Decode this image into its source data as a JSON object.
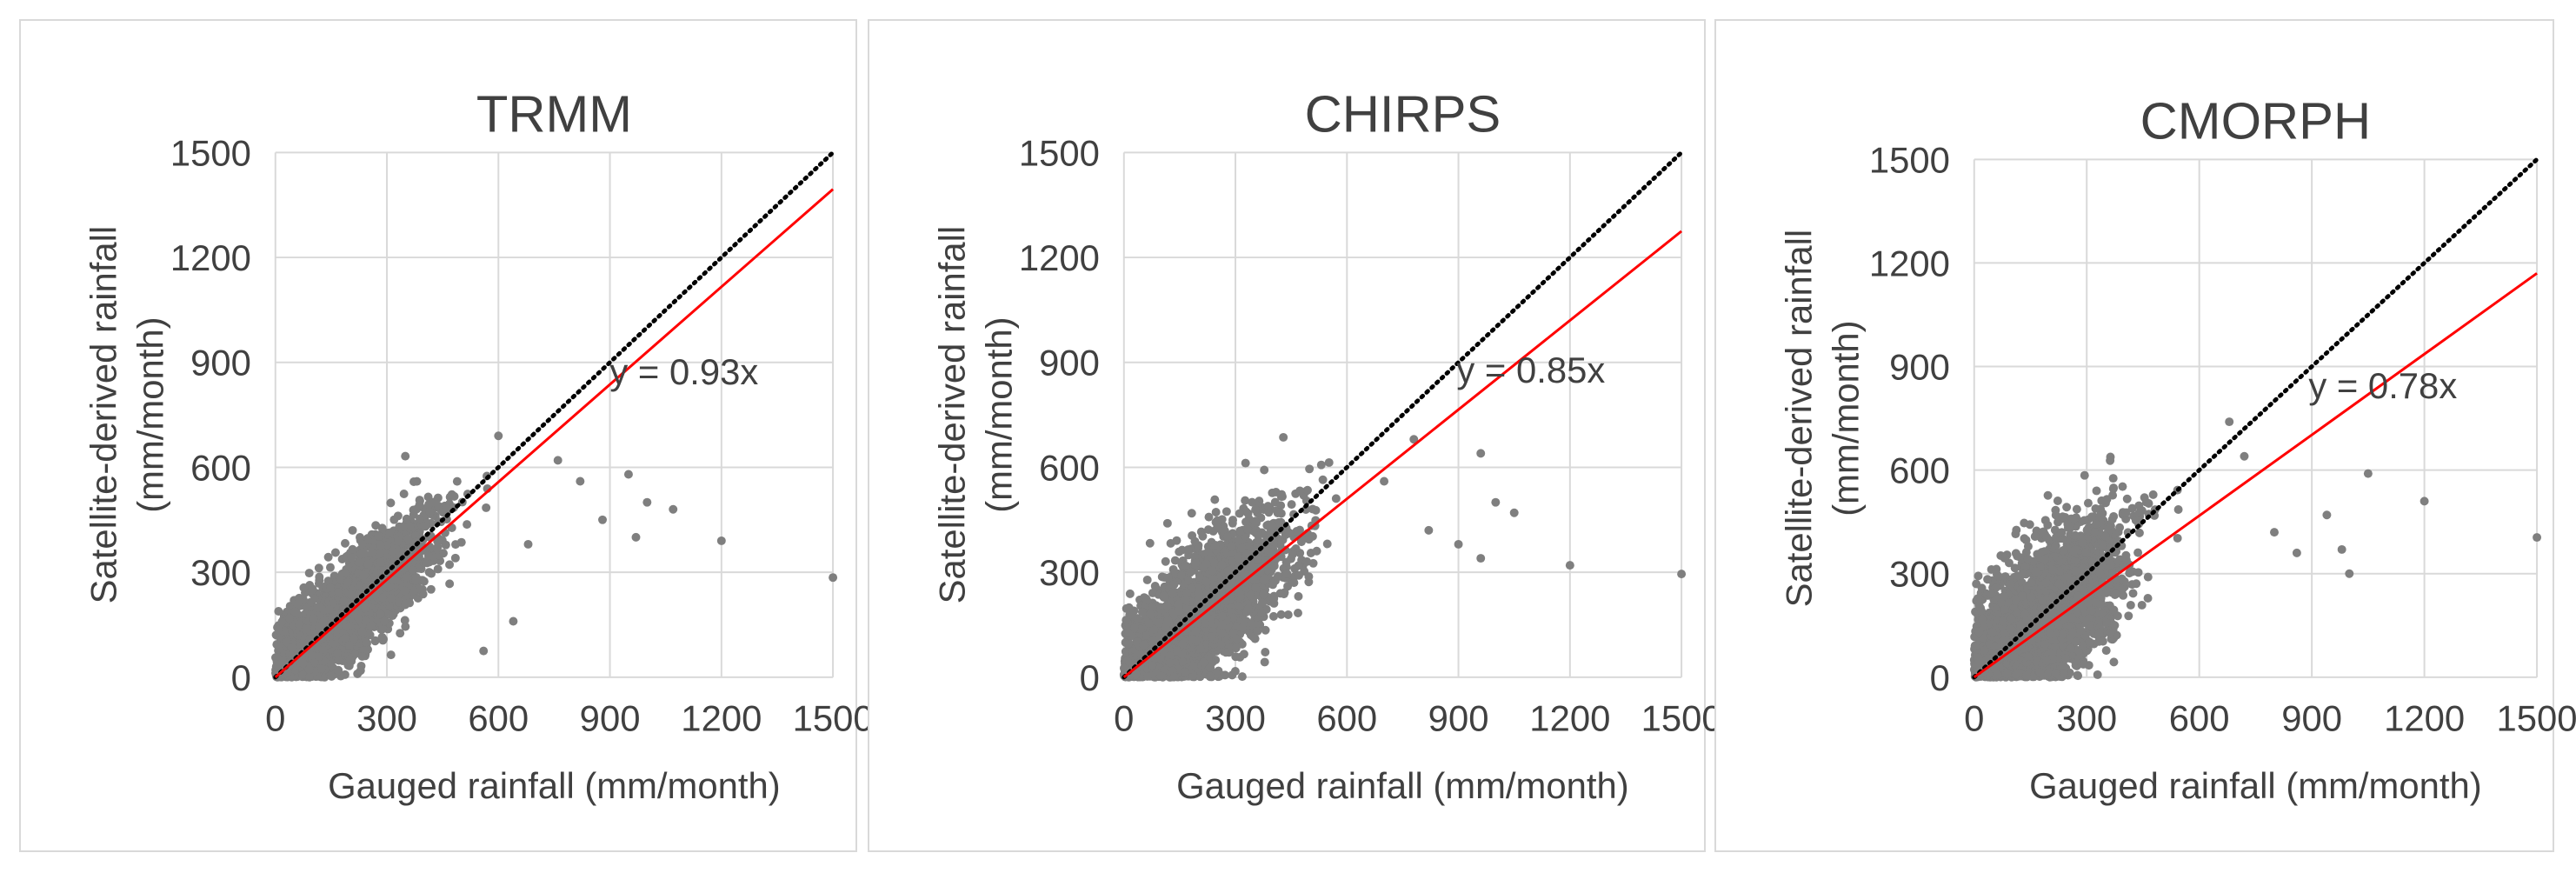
{
  "chart_data": [
    {
      "type": "scatter",
      "title": "TRMM",
      "xlabel": "Gauged rainfall (mm/month)",
      "ylabel_line1": "Satellite-derived rainfall",
      "ylabel_line2": "(mm/month)",
      "xlim": [
        0,
        1500
      ],
      "ylim": [
        0,
        1500
      ],
      "x_ticks": [
        "0",
        "300",
        "600",
        "900",
        "1200",
        "1500"
      ],
      "y_ticks": [
        "0",
        "300",
        "600",
        "900",
        "1200",
        "1500"
      ],
      "grid": true,
      "point_color": "#7f7f7f",
      "fit_color": "#ff0000",
      "one_to_one_color": "#000000",
      "fit_slope": 0.93,
      "equation": "y = 0.93x",
      "cloud": {
        "x_mean": 190,
        "x_sd": 120,
        "y_slope": 0.95,
        "y_sd": 70,
        "count": 2600
      },
      "outliers": [
        [
          950,
          580
        ],
        [
          1000,
          500
        ],
        [
          1070,
          480
        ],
        [
          970,
          400
        ],
        [
          1200,
          390
        ],
        [
          1500,
          285
        ],
        [
          640,
          160
        ],
        [
          600,
          690
        ],
        [
          760,
          620
        ],
        [
          820,
          560
        ],
        [
          880,
          450
        ],
        [
          680,
          380
        ],
        [
          560,
          75
        ]
      ]
    },
    {
      "type": "scatter",
      "title": "CHIRPS",
      "xlabel": "Gauged rainfall (mm/month)",
      "ylabel_line1": "Satellite-derived rainfall",
      "ylabel_line2": "(mm/month)",
      "xlim": [
        0,
        1500
      ],
      "ylim": [
        0,
        1500
      ],
      "x_ticks": [
        "0",
        "300",
        "600",
        "900",
        "1200",
        "1500"
      ],
      "y_ticks": [
        "0",
        "300",
        "600",
        "900",
        "1200",
        "1500"
      ],
      "grid": true,
      "point_color": "#7f7f7f",
      "fit_color": "#ff0000",
      "one_to_one_color": "#000000",
      "fit_slope": 0.85,
      "equation": "y = 0.85x",
      "cloud": {
        "x_mean": 200,
        "x_sd": 125,
        "y_slope": 0.85,
        "y_sd": 95,
        "count": 2600
      },
      "outliers": [
        [
          960,
          640
        ],
        [
          780,
          680
        ],
        [
          1050,
          470
        ],
        [
          1000,
          500
        ],
        [
          960,
          340
        ],
        [
          1200,
          320
        ],
        [
          1500,
          295
        ],
        [
          900,
          380
        ],
        [
          820,
          420
        ],
        [
          700,
          560
        ]
      ]
    },
    {
      "type": "scatter",
      "title": "CMORPH",
      "xlabel": "Gauged rainfall (mm/month)",
      "ylabel_line1": "Satellite-derived rainfall",
      "ylabel_line2": "(mm/month)",
      "xlim": [
        0,
        1500
      ],
      "ylim": [
        0,
        1500
      ],
      "x_ticks": [
        "0",
        "300",
        "600",
        "900",
        "1200",
        "1500"
      ],
      "y_ticks": [
        "0",
        "300",
        "600",
        "900",
        "1200",
        "1500"
      ],
      "grid": true,
      "point_color": "#7f7f7f",
      "fit_color": "#ff0000",
      "one_to_one_color": "#000000",
      "fit_slope": 0.78,
      "equation": "y = 0.78x",
      "cloud": {
        "x_mean": 180,
        "x_sd": 115,
        "y_slope": 0.9,
        "y_sd": 110,
        "count": 2600
      },
      "outliers": [
        [
          1050,
          590
        ],
        [
          1200,
          510
        ],
        [
          1500,
          405
        ],
        [
          940,
          470
        ],
        [
          980,
          370
        ],
        [
          1000,
          300
        ],
        [
          680,
          740
        ],
        [
          800,
          420
        ],
        [
          860,
          360
        ],
        [
          720,
          640
        ]
      ]
    }
  ]
}
